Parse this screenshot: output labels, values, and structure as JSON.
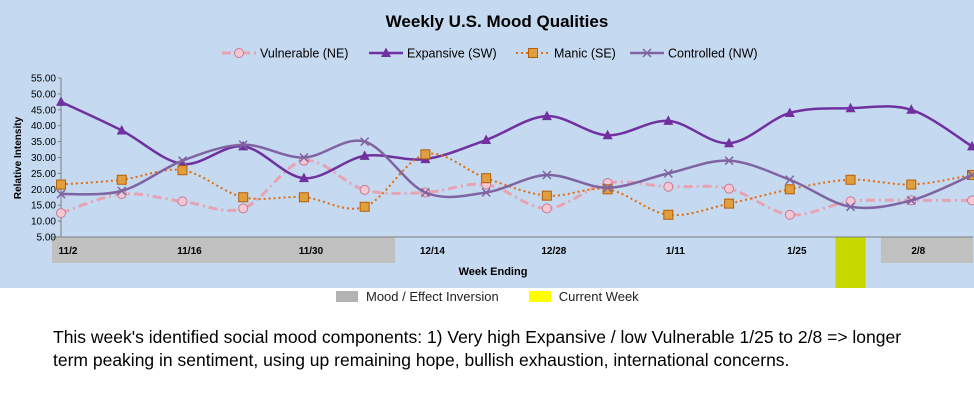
{
  "chart_data": {
    "type": "line",
    "title": "Weekly U.S. Mood Qualities",
    "xlabel": "Week Ending",
    "ylabel": "Relative Intensity",
    "ylim": [
      5,
      55
    ],
    "yticks": [
      "55.00",
      "50.00",
      "45.00",
      "40.00",
      "35.00",
      "30.00",
      "25.00",
      "20.00",
      "15.00",
      "10.00",
      "5.00"
    ],
    "weeks": [
      "11/2",
      "11/9",
      "11/16",
      "11/23",
      "11/30",
      "12/7",
      "12/14",
      "12/21",
      "12/28",
      "1/4",
      "1/11",
      "1/18",
      "1/25",
      "2/1",
      "2/8",
      "2/15"
    ],
    "x_tick_labels": [
      "11/2",
      "",
      "11/16",
      "",
      "11/30",
      "",
      "12/14",
      "",
      "12/28",
      "",
      "1/11",
      "",
      "1/25",
      "",
      "2/8",
      ""
    ],
    "legend_position": "top",
    "grid": false,
    "series": [
      {
        "name": "Vulnerable (NE)",
        "color": "#e8a3b3",
        "marker": "circle",
        "dash": "dashdot",
        "values": [
          12.5,
          18.5,
          16.2,
          14.0,
          29.0,
          19.8,
          19.0,
          21.5,
          14.0,
          22.0,
          20.8,
          20.2,
          12.0,
          16.2,
          16.5,
          16.5
        ]
      },
      {
        "name": "Expansive (SW)",
        "color": "#7030a0",
        "marker": "triangle",
        "dash": "solid",
        "values": [
          47.5,
          38.5,
          28.0,
          33.5,
          23.5,
          30.5,
          29.5,
          35.5,
          43.0,
          37.0,
          41.5,
          34.5,
          44.0,
          45.5,
          45.0,
          33.5
        ]
      },
      {
        "name": "Manic (SE)",
        "color": "#e36c09",
        "marker": "square",
        "dash": "dotted",
        "values": [
          21.5,
          23.0,
          26.0,
          17.5,
          17.5,
          14.5,
          31.0,
          23.5,
          18.0,
          20.0,
          12.0,
          15.5,
          20.0,
          23.0,
          21.5,
          24.5
        ]
      },
      {
        "name": "Controlled (NW)",
        "color": "#8064a2",
        "marker": "x",
        "dash": "solid",
        "values": [
          18.5,
          19.5,
          29.0,
          34.0,
          30.0,
          35.0,
          19.0,
          19.0,
          24.5,
          20.5,
          25.0,
          29.0,
          23.0,
          14.5,
          16.5,
          24.5
        ]
      }
    ],
    "inversion_weeks": [
      "11/2",
      "11/9",
      "11/16",
      "11/23",
      "11/30",
      "12/7",
      "2/8",
      "2/15"
    ],
    "current_week": "2/1",
    "bottom_legend": {
      "inversion_label": "Mood / Effect Inversion",
      "inversion_color": "#b3b3b3",
      "current_label": "Current Week",
      "current_color": "#ffff00"
    },
    "colors": {
      "chart_background": "#c5d9f1",
      "inversion": "#c0c0c0",
      "current_week": "#c6d800"
    }
  },
  "caption": "This week's identified social mood components: 1) Very high Expansive / low Vulnerable 1/25 to 2/8 => longer term peaking in sentiment, using up remaining hope, bullish exhaustion, international concerns."
}
